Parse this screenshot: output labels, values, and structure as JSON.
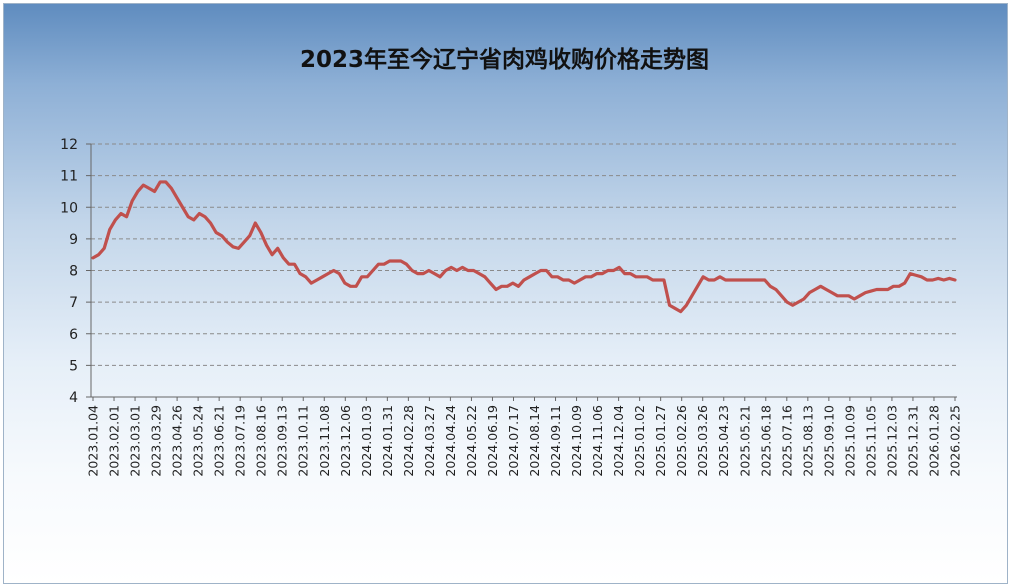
{
  "chart_data": {
    "type": "line",
    "title": "2023年至今辽宁省肉鸡收购价格走势图",
    "xlabel": "",
    "ylabel": "",
    "ylim": [
      4,
      12
    ],
    "y_ticks": [
      "4",
      "5",
      "6",
      "7",
      "8",
      "9",
      "10",
      "11",
      "12"
    ],
    "grid": true,
    "legend": "none",
    "line_color": "#c0504d",
    "x_tick_labels": [
      "2023.01.04",
      "2023.02.01",
      "2023.03.01",
      "2023.03.29",
      "2023.04.26",
      "2023.05.24",
      "2023.06.21",
      "2023.07.19",
      "2023.08.16",
      "2023.09.13",
      "2023.10.11",
      "2023.11.08",
      "2023.12.06",
      "2024.01.03",
      "2024.01.31",
      "2024.02.28",
      "2024.03.27",
      "2024.04.24",
      "2024.05.22",
      "2024.06.19",
      "2024.07.17",
      "2024.08.14",
      "2024.09.11",
      "2024.10.09",
      "2024.11.06",
      "2024.12.04",
      "2025.01.02",
      "2025.01.27",
      "2025.02.26",
      "2025.03.26",
      "2025.04.23",
      "2025.05.21",
      "2025.06.18",
      "2025.07.16",
      "2025.08.13",
      "2025.09.10",
      "2025.10.09",
      "2025.11.05",
      "2025.12.03",
      "2025.12.31",
      "2026.01.28",
      "2026.02.25"
    ],
    "series": [
      {
        "values": [
          8.4,
          8.5,
          8.7,
          9.3,
          9.6,
          9.8,
          9.7,
          10.2,
          10.5,
          10.7,
          10.6,
          10.5,
          10.8,
          10.8,
          10.6,
          10.3,
          10.0,
          9.7,
          9.6,
          9.8,
          9.7,
          9.5,
          9.2,
          9.1,
          8.9,
          8.75,
          8.7,
          8.9,
          9.1,
          9.5,
          9.2,
          8.8,
          8.5,
          8.7,
          8.4,
          8.2,
          8.2,
          7.9,
          7.8,
          7.6,
          7.7,
          7.8,
          7.9,
          8.0,
          7.9,
          7.6,
          7.5,
          7.5,
          7.8,
          7.8,
          8.0,
          8.2,
          8.2,
          8.3,
          8.3,
          8.3,
          8.2,
          8.0,
          7.9,
          7.9,
          8.0,
          7.9,
          7.8,
          8.0,
          8.1,
          8.0,
          8.1,
          8.0,
          8.0,
          7.9,
          7.8,
          7.6,
          7.4,
          7.5,
          7.5,
          7.6,
          7.5,
          7.7,
          7.8,
          7.9,
          8.0,
          8.0,
          7.8,
          7.8,
          7.7,
          7.7,
          7.6,
          7.7,
          7.8,
          7.8,
          7.9,
          7.9,
          8.0,
          8.0,
          8.1,
          7.9,
          7.9,
          7.8,
          7.8,
          7.8,
          7.7,
          7.7,
          7.7,
          6.9,
          6.8,
          6.7,
          6.9,
          7.2,
          7.5,
          7.8,
          7.7,
          7.7,
          7.8,
          7.7,
          7.7,
          7.7,
          7.7,
          7.7,
          7.7,
          7.7,
          7.7,
          7.5,
          7.4,
          7.2,
          7.0,
          6.9,
          7.0,
          7.1,
          7.3,
          7.4,
          7.5,
          7.4,
          7.3,
          7.2,
          7.2,
          7.2,
          7.1,
          7.2,
          7.3,
          7.35,
          7.4,
          7.4,
          7.4,
          7.5,
          7.5,
          7.6,
          7.9,
          7.85,
          7.8,
          7.7,
          7.7,
          7.75,
          7.7,
          7.75,
          7.7
        ]
      }
    ]
  }
}
